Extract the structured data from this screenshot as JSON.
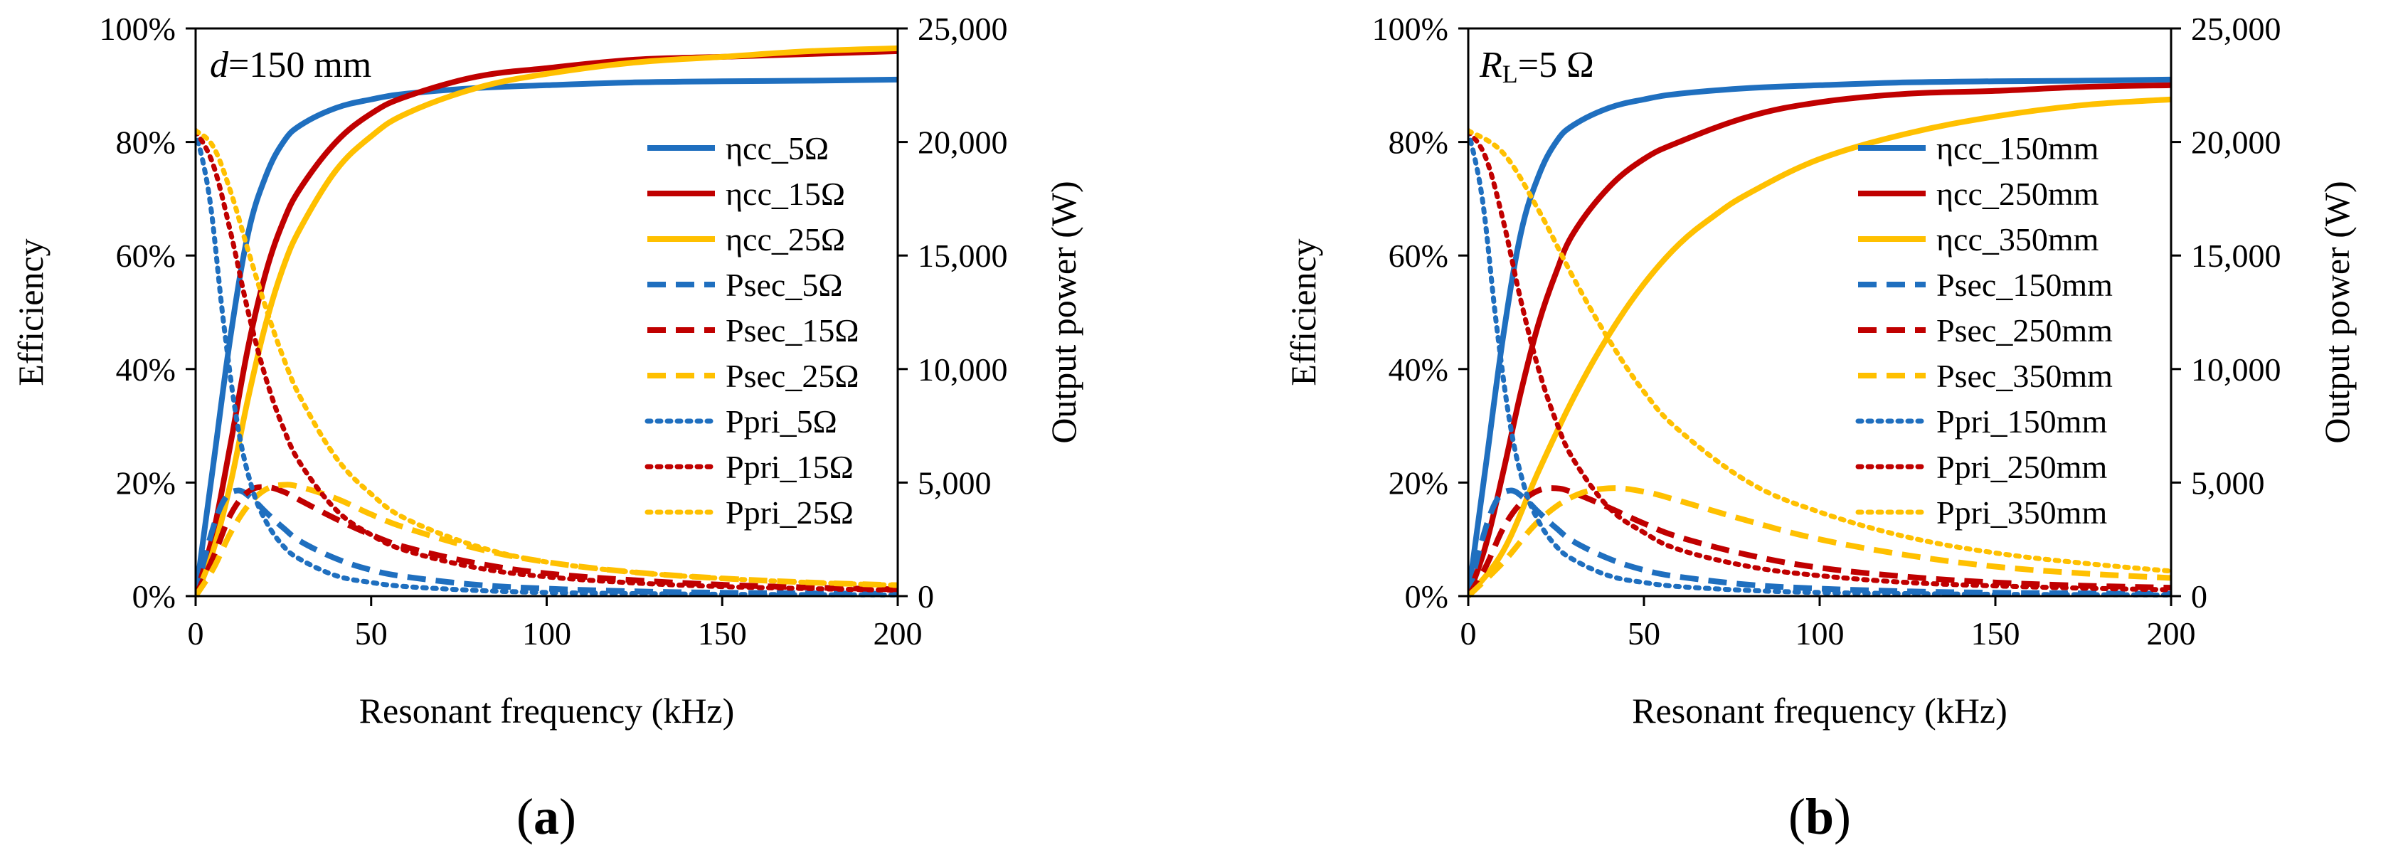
{
  "chart_data": [
    {
      "panel_label": "(a)",
      "panel_letter": "a",
      "type": "line",
      "annotation": {
        "prefix": "d",
        "suffix": "=150 mm"
      },
      "xlabel": "Resonant frequency (kHz)",
      "ylabel_left": "Efficiency",
      "ylabel_right": "Output power (W)",
      "xlim": [
        0,
        200
      ],
      "ylim_left": [
        0,
        100
      ],
      "ylim_right": [
        0,
        25000
      ],
      "xticks": [
        "0",
        "50",
        "100",
        "150",
        "200"
      ],
      "yticks_left": [
        "0%",
        "20%",
        "40%",
        "60%",
        "80%",
        "100%"
      ],
      "yticks_right": [
        "0",
        "5,000",
        "10,000",
        "15,000",
        "20,000",
        "25,000"
      ],
      "legend_position": "right",
      "series": [
        {
          "name": "ηcc_5Ω",
          "axis": "left",
          "style": "solid",
          "color": "#1f6fbf",
          "x": [
            0,
            5,
            10,
            15,
            20,
            25,
            30,
            40,
            50,
            60,
            80,
            100,
            125,
            150,
            175,
            200
          ],
          "y": [
            0,
            23,
            46,
            64,
            74,
            80,
            83,
            86,
            87.5,
            88.5,
            89.5,
            90,
            90.5,
            90.7,
            90.8,
            91
          ]
        },
        {
          "name": "ηcc_15Ω",
          "axis": "left",
          "style": "solid",
          "color": "#c00000",
          "x": [
            0,
            5,
            10,
            15,
            20,
            25,
            30,
            40,
            50,
            60,
            80,
            100,
            125,
            150,
            175,
            200
          ],
          "y": [
            0,
            11,
            27,
            44,
            57,
            66,
            72,
            80,
            85,
            88,
            91.5,
            93,
            94.5,
            95,
            95.5,
            96
          ]
        },
        {
          "name": "ηcc_25Ω",
          "axis": "left",
          "style": "solid",
          "color": "#ffc000",
          "x": [
            0,
            5,
            10,
            15,
            20,
            25,
            30,
            40,
            50,
            60,
            80,
            100,
            125,
            150,
            175,
            200
          ],
          "y": [
            0,
            8,
            20,
            35,
            48,
            58,
            65,
            75,
            81,
            85,
            89.5,
            92,
            94,
            95,
            96,
            96.5
          ]
        },
        {
          "name": "Psec_5Ω",
          "axis": "right",
          "style": "dashed",
          "color": "#1f6fbf",
          "x": [
            0,
            4,
            8,
            12,
            16,
            20,
            25,
            30,
            40,
            50,
            60,
            80,
            100,
            125,
            150,
            175,
            200
          ],
          "y": [
            0,
            2500,
            4200,
            4650,
            4300,
            3700,
            3000,
            2400,
            1650,
            1150,
            850,
            500,
            330,
            210,
            150,
            120,
            100
          ]
        },
        {
          "name": "Psec_15Ω",
          "axis": "right",
          "style": "dashed",
          "color": "#c00000",
          "x": [
            0,
            5,
            10,
            15,
            20,
            25,
            30,
            40,
            50,
            60,
            80,
            100,
            125,
            150,
            175,
            200
          ],
          "y": [
            0,
            1700,
            3600,
            4600,
            4800,
            4600,
            4200,
            3400,
            2700,
            2150,
            1450,
            1000,
            700,
            500,
            380,
            300
          ]
        },
        {
          "name": "Psec_25Ω",
          "axis": "right",
          "style": "dashed",
          "color": "#ffc000",
          "x": [
            0,
            5,
            10,
            15,
            20,
            25,
            30,
            40,
            50,
            60,
            80,
            100,
            125,
            150,
            175,
            200
          ],
          "y": [
            0,
            1200,
            2800,
            4000,
            4700,
            4900,
            4800,
            4300,
            3600,
            3000,
            2100,
            1500,
            1050,
            780,
            600,
            480
          ]
        },
        {
          "name": "Ppri_5Ω",
          "axis": "right",
          "style": "dotted",
          "color": "#1f6fbf",
          "x": [
            0,
            4,
            8,
            12,
            16,
            20,
            25,
            30,
            40,
            50,
            60,
            80,
            100,
            125,
            150,
            200
          ],
          "y": [
            20500,
            17500,
            12000,
            7500,
            4800,
            3300,
            2200,
            1600,
            900,
            600,
            420,
            250,
            160,
            110,
            80,
            50
          ]
        },
        {
          "name": "Ppri_15Ω",
          "axis": "right",
          "style": "dotted",
          "color": "#c00000",
          "x": [
            0,
            5,
            10,
            15,
            20,
            25,
            30,
            40,
            50,
            60,
            80,
            100,
            125,
            150,
            175,
            200
          ],
          "y": [
            20500,
            19000,
            16000,
            12500,
            9600,
            7400,
            5800,
            3800,
            2700,
            2000,
            1250,
            850,
            580,
            420,
            330,
            260
          ]
        },
        {
          "name": "Ppri_25Ω",
          "axis": "right",
          "style": "dotted",
          "color": "#ffc000",
          "x": [
            0,
            5,
            10,
            15,
            20,
            25,
            30,
            40,
            50,
            60,
            80,
            100,
            125,
            150,
            175,
            200
          ],
          "y": [
            20500,
            19800,
            17800,
            15200,
            12700,
            10500,
            8700,
            6100,
            4500,
            3400,
            2200,
            1500,
            1050,
            780,
            600,
            480
          ]
        }
      ]
    },
    {
      "panel_label": "(b)",
      "panel_letter": "b",
      "type": "line",
      "annotation": {
        "prefix": "R",
        "sub": "L",
        "suffix": "=5 Ω"
      },
      "xlabel": "Resonant frequency (kHz)",
      "ylabel_left": "Efficiency",
      "ylabel_right": "Output power (W)",
      "xlim": [
        0,
        200
      ],
      "ylim_left": [
        0,
        100
      ],
      "ylim_right": [
        0,
        25000
      ],
      "xticks": [
        "0",
        "50",
        "100",
        "150",
        "200"
      ],
      "yticks_left": [
        "0%",
        "20%",
        "40%",
        "60%",
        "80%",
        "100%"
      ],
      "yticks_right": [
        "0",
        "5,000",
        "10,000",
        "15,000",
        "20,000",
        "25,000"
      ],
      "legend_position": "right",
      "series": [
        {
          "name": "ηcc_150mm",
          "axis": "left",
          "style": "solid",
          "color": "#1f6fbf",
          "x": [
            0,
            5,
            10,
            15,
            20,
            25,
            30,
            40,
            50,
            60,
            80,
            100,
            125,
            150,
            175,
            200
          ],
          "y": [
            0,
            23,
            46,
            64,
            74,
            80,
            83,
            86,
            87.5,
            88.5,
            89.5,
            90,
            90.5,
            90.7,
            90.8,
            91
          ]
        },
        {
          "name": "ηcc_250mm",
          "axis": "left",
          "style": "solid",
          "color": "#c00000",
          "x": [
            0,
            5,
            10,
            15,
            20,
            25,
            30,
            40,
            50,
            60,
            80,
            100,
            125,
            150,
            175,
            200
          ],
          "y": [
            0,
            9,
            22,
            36,
            48,
            57,
            64,
            72,
            77,
            80,
            84.5,
            87,
            88.5,
            89,
            89.7,
            90
          ]
        },
        {
          "name": "ηcc_350mm",
          "axis": "left",
          "style": "solid",
          "color": "#ffc000",
          "x": [
            0,
            10,
            20,
            30,
            40,
            50,
            60,
            70,
            80,
            100,
            125,
            150,
            175,
            200
          ],
          "y": [
            0,
            8,
            22,
            35,
            46,
            55,
            62,
            67,
            71,
            77,
            81.5,
            84.5,
            86.5,
            87.5
          ]
        },
        {
          "name": "Psec_150mm",
          "axis": "right",
          "style": "dashed",
          "color": "#1f6fbf",
          "x": [
            0,
            4,
            8,
            12,
            16,
            20,
            25,
            30,
            40,
            50,
            60,
            80,
            100,
            125,
            150,
            175,
            200
          ],
          "y": [
            0,
            2500,
            4200,
            4650,
            4300,
            3700,
            3000,
            2400,
            1650,
            1150,
            850,
            500,
            330,
            210,
            150,
            120,
            100
          ]
        },
        {
          "name": "Psec_250mm",
          "axis": "right",
          "style": "dashed",
          "color": "#c00000",
          "x": [
            0,
            5,
            10,
            15,
            20,
            25,
            30,
            40,
            50,
            60,
            80,
            100,
            125,
            150,
            175,
            200
          ],
          "y": [
            0,
            1300,
            3000,
            4100,
            4650,
            4750,
            4550,
            3900,
            3200,
            2600,
            1800,
            1250,
            850,
            600,
            460,
            370
          ]
        },
        {
          "name": "Psec_350mm",
          "axis": "right",
          "style": "dashed",
          "color": "#ffc000",
          "x": [
            0,
            10,
            20,
            30,
            40,
            50,
            60,
            80,
            100,
            125,
            150,
            175,
            200
          ],
          "y": [
            0,
            1500,
            3300,
            4400,
            4750,
            4600,
            4200,
            3300,
            2500,
            1800,
            1300,
            1000,
            800
          ]
        },
        {
          "name": "Ppri_150mm",
          "axis": "right",
          "style": "dotted",
          "color": "#1f6fbf",
          "x": [
            0,
            4,
            8,
            12,
            16,
            20,
            25,
            30,
            40,
            50,
            60,
            80,
            100,
            125,
            150,
            200
          ],
          "y": [
            20500,
            17500,
            12000,
            7500,
            4800,
            3300,
            2200,
            1600,
            900,
            600,
            420,
            250,
            160,
            110,
            80,
            50
          ]
        },
        {
          "name": "Ppri_250mm",
          "axis": "right",
          "style": "dotted",
          "color": "#c00000",
          "x": [
            0,
            5,
            10,
            15,
            20,
            25,
            30,
            40,
            50,
            60,
            80,
            100,
            125,
            150,
            175,
            200
          ],
          "y": [
            20500,
            19300,
            16500,
            13000,
            10000,
            7700,
            6000,
            3900,
            2800,
            2050,
            1300,
            900,
            600,
            450,
            350,
            280
          ]
        },
        {
          "name": "Ppri_350mm",
          "axis": "right",
          "style": "dotted",
          "color": "#ffc000",
          "x": [
            0,
            10,
            20,
            30,
            40,
            50,
            60,
            80,
            100,
            125,
            150,
            175,
            200
          ],
          "y": [
            20500,
            19500,
            17000,
            14000,
            11300,
            9000,
            7300,
            5000,
            3700,
            2600,
            1900,
            1450,
            1100
          ]
        }
      ]
    }
  ]
}
